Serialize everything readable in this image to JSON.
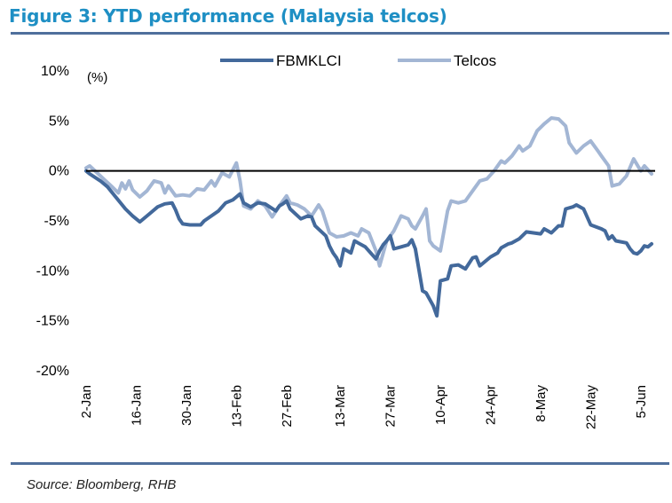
{
  "figure": {
    "title": "Figure 3:  YTD performance (Malaysia telcos)",
    "source": "Source: Bloomberg, RHB"
  },
  "colors": {
    "title": "#1e8fc4",
    "rule": "#4f6f9c",
    "fbmklci": "#43699b",
    "telcos": "#a3b6d4",
    "zero_line": "#000000"
  },
  "chart_data": {
    "type": "line",
    "ylabel": "(%)",
    "ylim": [
      -20,
      10
    ],
    "yticks": [
      10,
      5,
      0,
      -5,
      -10,
      -15,
      -20
    ],
    "ytick_labels": [
      "10%",
      "5%",
      "0%",
      "-5%",
      "-10%",
      "-15%",
      "-20%"
    ],
    "xlim": [
      "2020-01-02",
      "2020-06-09"
    ],
    "xticks": [
      "2020-01-02",
      "2020-01-16",
      "2020-01-30",
      "2020-02-13",
      "2020-02-27",
      "2020-03-13",
      "2020-03-27",
      "2020-04-10",
      "2020-04-24",
      "2020-05-08",
      "2020-05-22",
      "2020-06-05"
    ],
    "xtick_labels": [
      "2-Jan",
      "16-Jan",
      "30-Jan",
      "13-Feb",
      "27-Feb",
      "13-Mar",
      "27-Mar",
      "10-Apr",
      "24-Apr",
      "8-May",
      "22-May",
      "5-Jun"
    ],
    "legend_position": "top-center",
    "zero_line": true,
    "grid": false,
    "series": [
      {
        "name": "FBMKLCI",
        "color": "#43699b",
        "points": [
          [
            "2020-01-02",
            0.0
          ],
          [
            "2020-01-03",
            -0.3
          ],
          [
            "2020-01-06",
            -1.0
          ],
          [
            "2020-01-08",
            -1.6
          ],
          [
            "2020-01-10",
            -2.5
          ],
          [
            "2020-01-13",
            -3.8
          ],
          [
            "2020-01-15",
            -4.5
          ],
          [
            "2020-01-17",
            -5.1
          ],
          [
            "2020-01-20",
            -4.2
          ],
          [
            "2020-01-22",
            -3.6
          ],
          [
            "2020-01-24",
            -3.3
          ],
          [
            "2020-01-26",
            -3.2
          ],
          [
            "2020-01-27",
            -3.9
          ],
          [
            "2020-01-28",
            -4.8
          ],
          [
            "2020-01-29",
            -5.3
          ],
          [
            "2020-01-31",
            -5.4
          ],
          [
            "2020-02-03",
            -5.4
          ],
          [
            "2020-02-04",
            -5.0
          ],
          [
            "2020-02-06",
            -4.5
          ],
          [
            "2020-02-08",
            -4.0
          ],
          [
            "2020-02-10",
            -3.2
          ],
          [
            "2020-02-12",
            -2.9
          ],
          [
            "2020-02-13",
            -2.6
          ],
          [
            "2020-02-14",
            -2.3
          ],
          [
            "2020-02-15",
            -3.2
          ],
          [
            "2020-02-17",
            -3.6
          ],
          [
            "2020-02-19",
            -3.2
          ],
          [
            "2020-02-21",
            -3.3
          ],
          [
            "2020-02-24",
            -4.0
          ],
          [
            "2020-02-25",
            -3.5
          ],
          [
            "2020-02-26",
            -3.3
          ],
          [
            "2020-02-27",
            -3.0
          ],
          [
            "2020-02-28",
            -3.8
          ],
          [
            "2020-03-02",
            -4.8
          ],
          [
            "2020-03-04",
            -4.5
          ],
          [
            "2020-03-05",
            -4.6
          ],
          [
            "2020-03-06",
            -5.5
          ],
          [
            "2020-03-09",
            -6.5
          ],
          [
            "2020-03-10",
            -7.5
          ],
          [
            "2020-03-11",
            -8.2
          ],
          [
            "2020-03-12",
            -8.7
          ],
          [
            "2020-03-13",
            -9.5
          ],
          [
            "2020-03-14",
            -7.8
          ],
          [
            "2020-03-16",
            -8.2
          ],
          [
            "2020-03-17",
            -7.0
          ],
          [
            "2020-03-18",
            -7.2
          ],
          [
            "2020-03-20",
            -7.6
          ],
          [
            "2020-03-23",
            -8.8
          ],
          [
            "2020-03-24",
            -8.0
          ],
          [
            "2020-03-25",
            -7.4
          ],
          [
            "2020-03-26",
            -7.0
          ],
          [
            "2020-03-27",
            -6.5
          ],
          [
            "2020-03-28",
            -7.8
          ],
          [
            "2020-03-30",
            -7.6
          ],
          [
            "2020-04-01",
            -7.4
          ],
          [
            "2020-04-02",
            -6.9
          ],
          [
            "2020-04-03",
            -7.8
          ],
          [
            "2020-04-05",
            -12.0
          ],
          [
            "2020-04-06",
            -12.2
          ],
          [
            "2020-04-08",
            -13.5
          ],
          [
            "2020-04-09",
            -14.5
          ],
          [
            "2020-04-10",
            -11.0
          ],
          [
            "2020-04-12",
            -10.8
          ],
          [
            "2020-04-13",
            -9.5
          ],
          [
            "2020-04-15",
            -9.4
          ],
          [
            "2020-04-17",
            -9.8
          ],
          [
            "2020-04-19",
            -8.7
          ],
          [
            "2020-04-20",
            -8.6
          ],
          [
            "2020-04-21",
            -9.5
          ],
          [
            "2020-04-24",
            -8.6
          ],
          [
            "2020-04-26",
            -8.2
          ],
          [
            "2020-04-27",
            -7.7
          ],
          [
            "2020-04-29",
            -7.3
          ],
          [
            "2020-04-30",
            -7.2
          ],
          [
            "2020-05-02",
            -6.8
          ],
          [
            "2020-05-04",
            -6.1
          ],
          [
            "2020-05-06",
            -6.2
          ],
          [
            "2020-05-08",
            -6.3
          ],
          [
            "2020-05-09",
            -5.8
          ],
          [
            "2020-05-11",
            -6.2
          ],
          [
            "2020-05-13",
            -5.5
          ],
          [
            "2020-05-14",
            -5.5
          ],
          [
            "2020-05-15",
            -3.8
          ],
          [
            "2020-05-17",
            -3.6
          ],
          [
            "2020-05-18",
            -3.4
          ],
          [
            "2020-05-20",
            -3.8
          ],
          [
            "2020-05-22",
            -5.4
          ],
          [
            "2020-05-25",
            -5.8
          ],
          [
            "2020-05-26",
            -6.0
          ],
          [
            "2020-05-27",
            -6.8
          ],
          [
            "2020-05-28",
            -6.5
          ],
          [
            "2020-05-29",
            -7.0
          ],
          [
            "2020-06-01",
            -7.2
          ],
          [
            "2020-06-02",
            -7.8
          ],
          [
            "2020-06-03",
            -8.2
          ],
          [
            "2020-06-04",
            -8.3
          ],
          [
            "2020-06-05",
            -8.0
          ],
          [
            "2020-06-06",
            -7.5
          ],
          [
            "2020-06-07",
            -7.6
          ],
          [
            "2020-06-08",
            -7.3
          ]
        ]
      },
      {
        "name": "Telcos",
        "color": "#a3b6d4",
        "points": [
          [
            "2020-01-02",
            0.3
          ],
          [
            "2020-01-03",
            0.5
          ],
          [
            "2020-01-06",
            -0.5
          ],
          [
            "2020-01-09",
            -1.5
          ],
          [
            "2020-01-11",
            -2.2
          ],
          [
            "2020-01-12",
            -1.2
          ],
          [
            "2020-01-13",
            -1.8
          ],
          [
            "2020-01-14",
            -1.0
          ],
          [
            "2020-01-15",
            -1.9
          ],
          [
            "2020-01-17",
            -2.6
          ],
          [
            "2020-01-19",
            -2.0
          ],
          [
            "2020-01-21",
            -1.0
          ],
          [
            "2020-01-23",
            -1.2
          ],
          [
            "2020-01-24",
            -2.2
          ],
          [
            "2020-01-25",
            -1.5
          ],
          [
            "2020-01-27",
            -2.5
          ],
          [
            "2020-01-29",
            -2.4
          ],
          [
            "2020-01-31",
            -2.5
          ],
          [
            "2020-02-02",
            -1.8
          ],
          [
            "2020-02-04",
            -1.9
          ],
          [
            "2020-02-06",
            -1.0
          ],
          [
            "2020-02-07",
            -1.5
          ],
          [
            "2020-02-09",
            -0.2
          ],
          [
            "2020-02-11",
            -0.6
          ],
          [
            "2020-02-13",
            0.8
          ],
          [
            "2020-02-14",
            -1.0
          ],
          [
            "2020-02-15",
            -3.5
          ],
          [
            "2020-02-17",
            -3.8
          ],
          [
            "2020-02-19",
            -3.0
          ],
          [
            "2020-02-21",
            -3.5
          ],
          [
            "2020-02-23",
            -4.6
          ],
          [
            "2020-02-25",
            -3.5
          ],
          [
            "2020-02-27",
            -2.5
          ],
          [
            "2020-02-28",
            -3.2
          ],
          [
            "2020-03-01",
            -3.4
          ],
          [
            "2020-03-03",
            -3.8
          ],
          [
            "2020-03-05",
            -4.5
          ],
          [
            "2020-03-07",
            -3.4
          ],
          [
            "2020-03-08",
            -4.0
          ],
          [
            "2020-03-10",
            -6.2
          ],
          [
            "2020-03-12",
            -6.6
          ],
          [
            "2020-03-14",
            -6.5
          ],
          [
            "2020-03-16",
            -6.2
          ],
          [
            "2020-03-18",
            -6.5
          ],
          [
            "2020-03-19",
            -5.8
          ],
          [
            "2020-03-21",
            -6.2
          ],
          [
            "2020-03-23",
            -8.0
          ],
          [
            "2020-03-24",
            -9.5
          ],
          [
            "2020-03-26",
            -7.0
          ],
          [
            "2020-03-28",
            -6.0
          ],
          [
            "2020-03-30",
            -4.5
          ],
          [
            "2020-04-01",
            -4.8
          ],
          [
            "2020-04-02",
            -5.5
          ],
          [
            "2020-04-03",
            -5.8
          ],
          [
            "2020-04-05",
            -4.5
          ],
          [
            "2020-04-06",
            -3.8
          ],
          [
            "2020-04-07",
            -7.0
          ],
          [
            "2020-04-08",
            -7.5
          ],
          [
            "2020-04-10",
            -8.0
          ],
          [
            "2020-04-12",
            -4.0
          ],
          [
            "2020-04-13",
            -3.0
          ],
          [
            "2020-04-15",
            -3.2
          ],
          [
            "2020-04-17",
            -3.0
          ],
          [
            "2020-04-19",
            -2.0
          ],
          [
            "2020-04-21",
            -1.0
          ],
          [
            "2020-04-23",
            -0.8
          ],
          [
            "2020-04-25",
            0.0
          ],
          [
            "2020-04-27",
            1.0
          ],
          [
            "2020-04-28",
            0.8
          ],
          [
            "2020-04-30",
            1.5
          ],
          [
            "2020-05-02",
            2.5
          ],
          [
            "2020-05-03",
            2.0
          ],
          [
            "2020-05-05",
            2.5
          ],
          [
            "2020-05-07",
            4.0
          ],
          [
            "2020-05-09",
            4.7
          ],
          [
            "2020-05-11",
            5.3
          ],
          [
            "2020-05-13",
            5.2
          ],
          [
            "2020-05-15",
            4.5
          ],
          [
            "2020-05-16",
            2.8
          ],
          [
            "2020-05-18",
            1.8
          ],
          [
            "2020-05-20",
            2.5
          ],
          [
            "2020-05-22",
            3.0
          ],
          [
            "2020-05-24",
            2.0
          ],
          [
            "2020-05-25",
            1.5
          ],
          [
            "2020-05-27",
            0.5
          ],
          [
            "2020-05-28",
            -1.5
          ],
          [
            "2020-05-30",
            -1.3
          ],
          [
            "2020-06-01",
            -0.5
          ],
          [
            "2020-06-03",
            1.2
          ],
          [
            "2020-06-05",
            0.0
          ],
          [
            "2020-06-06",
            0.5
          ],
          [
            "2020-06-08",
            -0.3
          ]
        ]
      }
    ]
  }
}
